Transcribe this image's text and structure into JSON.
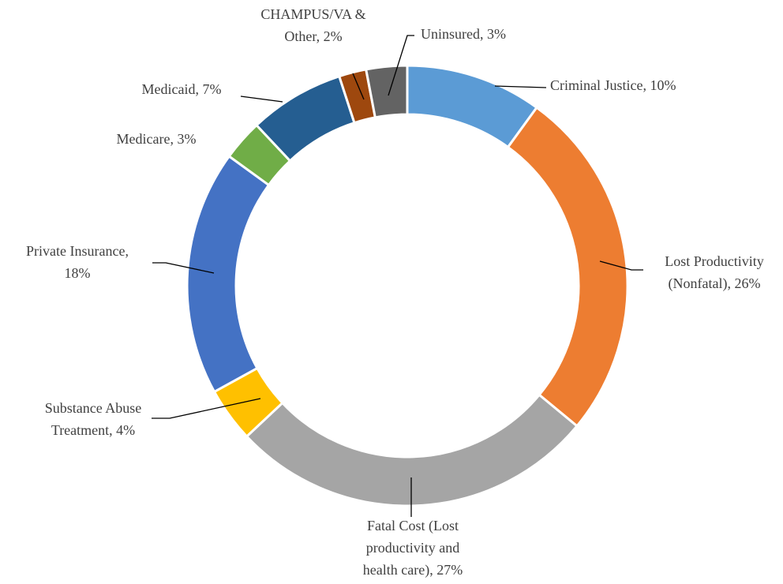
{
  "chart_data": {
    "type": "donut",
    "values": [
      10,
      26,
      27,
      4,
      18,
      3,
      7,
      2,
      3
    ],
    "labels": [
      [
        "Criminal Justice, 10%"
      ],
      [
        "Lost Productivity",
        "(Nonfatal), 26%"
      ],
      [
        "Fatal Cost (Lost",
        "productivity and",
        "health care), 27%"
      ],
      [
        "Substance Abuse",
        "Treatment, 4%"
      ],
      [
        "Private Insurance,",
        "18%"
      ],
      [
        "Medicare, 3%"
      ],
      [
        "Medicaid, 7%"
      ],
      [
        "CHAMPUS/VA &",
        "Other, 2%"
      ],
      [
        "Uninsured, 3%"
      ]
    ],
    "colors": [
      "#5b9bd5",
      "#ed7d31",
      "#a5a5a5",
      "#ffc000",
      "#4472c4",
      "#70ad47",
      "#255e91",
      "#9e480e",
      "#636363"
    ]
  }
}
